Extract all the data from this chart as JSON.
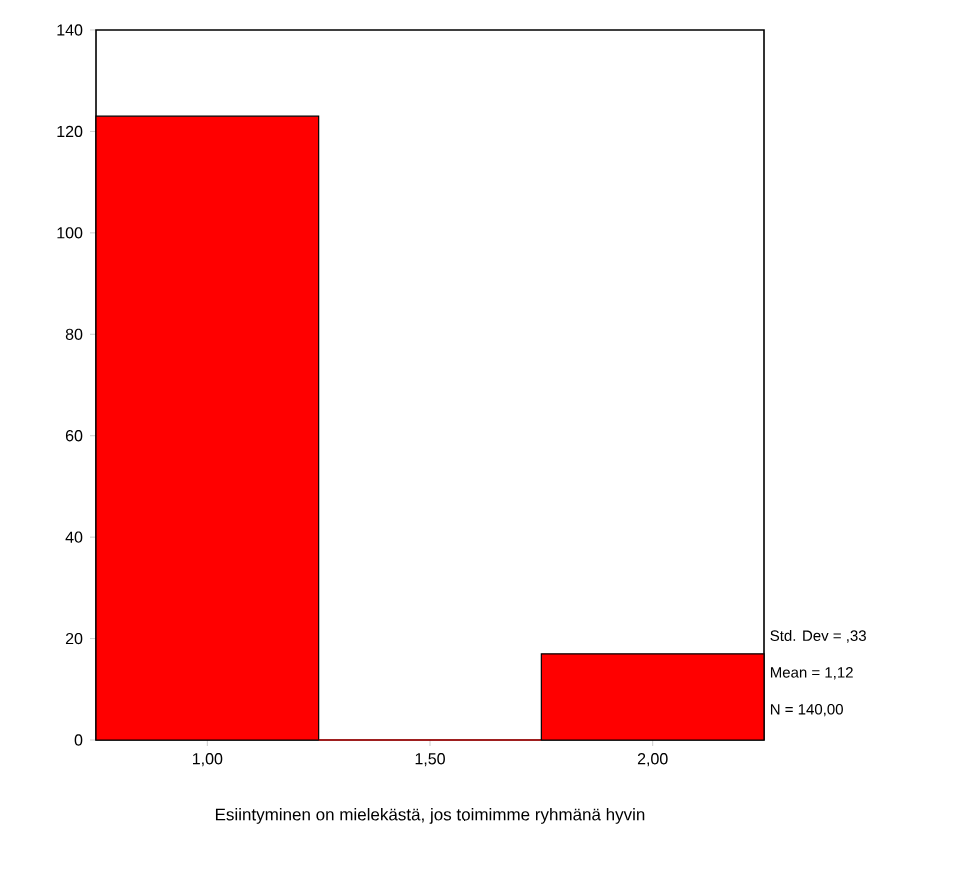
{
  "chart_data": {
    "type": "histogram",
    "xlabel": "Esiintyminen on mielekästä, jos toimimme ryhmänä hyvin",
    "bins": [
      0.75,
      1.25,
      1.75,
      2.25
    ],
    "values": [
      123,
      0,
      17
    ],
    "color": "#ff0000",
    "xlim": [
      0.75,
      2.25
    ],
    "xticks": [
      {
        "value": 1,
        "label": "1,00"
      },
      {
        "value": 1.5,
        "label": "1,50"
      },
      {
        "value": 2,
        "label": "2,00"
      }
    ],
    "ylim": [
      0,
      140
    ],
    "yticks": [
      0,
      20,
      40,
      60,
      80,
      100,
      120,
      140
    ],
    "grid": false,
    "annotations": [
      "Std. Dev = ,33",
      "Mean = 1,12",
      "N = 140,00"
    ]
  }
}
